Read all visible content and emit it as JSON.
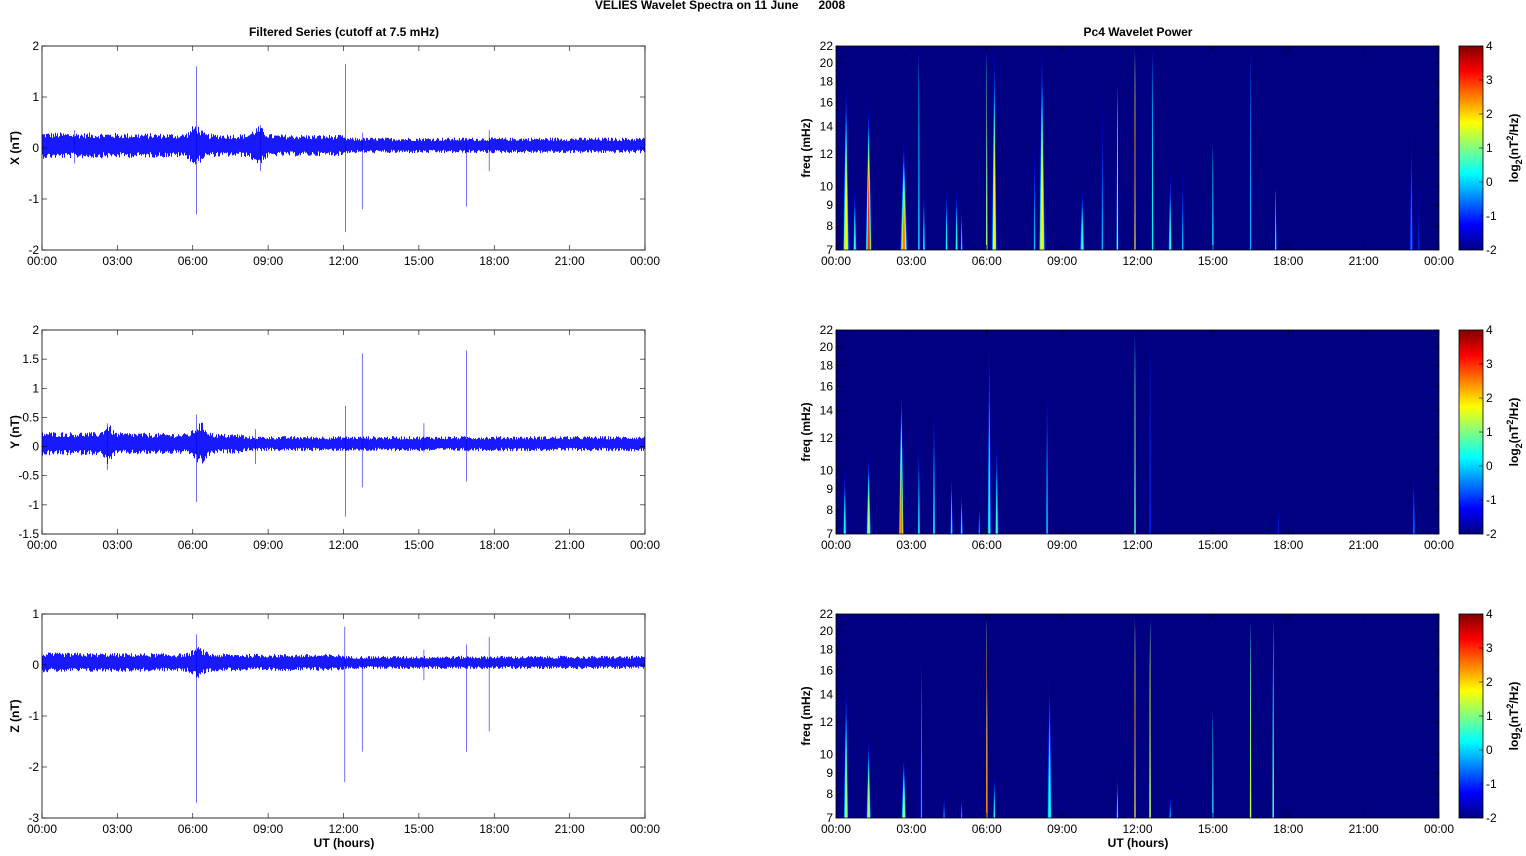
{
  "figure_title": "VELIES Wavelet Spectra on 11 June      2008",
  "left_column_title": "Filtered Series (cutoff at 7.5 mHz)",
  "right_column_title": "Pc4 Wavelet Power",
  "xlabel": "UT (hours)",
  "time_ticks": [
    "00:00",
    "03:00",
    "06:00",
    "09:00",
    "12:00",
    "15:00",
    "18:00",
    "21:00",
    "00:00"
  ],
  "colors": {
    "trace": "#0000ff",
    "axes": "#000000"
  },
  "chart_data": [
    {
      "type": "line",
      "name": "X",
      "ylabel": "X (nT)",
      "xlim": [
        0,
        24
      ],
      "ylim": [
        -2,
        2
      ],
      "yticks": [
        "2",
        "1",
        "0",
        "-1",
        "-2"
      ],
      "ytick_values": [
        2,
        1,
        0,
        -1,
        -2
      ],
      "baseline": 0.05,
      "noise_amplitude": 0.12,
      "active_intervals": [
        [
          0,
          12,
          0.08
        ],
        [
          6.1,
          0.25,
          0.15
        ],
        [
          8.6,
          0.3,
          0.12
        ]
      ],
      "spikes": [
        [
          6.15,
          1.6,
          -1.3
        ],
        [
          12.08,
          1.65,
          -1.65
        ],
        [
          12.75,
          0.3,
          -1.2
        ],
        [
          16.9,
          0.1,
          -1.15
        ],
        [
          17.8,
          0.35,
          -0.45
        ],
        [
          1.3,
          0.35,
          -0.3
        ],
        [
          8.7,
          0.45,
          -0.45
        ]
      ]
    },
    {
      "type": "heatmap",
      "name": "X-power",
      "ylabel": "freq (mHz)",
      "xlim": [
        0,
        24
      ],
      "ylim": [
        7,
        22
      ],
      "yscale": "log",
      "yticks": [
        "22",
        "20",
        "18",
        "16",
        "14",
        "12",
        "10",
        "9",
        "8",
        "7"
      ],
      "ytick_values": [
        22,
        20,
        18,
        16,
        14,
        12,
        10,
        9,
        8,
        7
      ],
      "colorbar": {
        "label": "log2(nT2/Hz)",
        "ticks": [
          "4",
          "3",
          "2",
          "1",
          "0",
          "-1",
          "-2"
        ],
        "range": [
          -2,
          4
        ]
      },
      "bursts": [
        [
          0.4,
          18,
          1.8,
          0.25
        ],
        [
          0.75,
          10,
          0.5,
          0.15
        ],
        [
          1.3,
          16,
          3,
          0.25
        ],
        [
          2.7,
          13,
          2.5,
          0.3
        ],
        [
          3.3,
          22,
          0.3,
          0.05
        ],
        [
          3.5,
          10,
          0.5,
          0.1
        ],
        [
          4.4,
          10,
          0.3,
          0.1
        ],
        [
          4.8,
          10,
          0.5,
          0.12
        ],
        [
          5.0,
          9,
          0.2,
          0.08
        ],
        [
          6.0,
          22,
          1.5,
          0.04
        ],
        [
          6.3,
          22,
          1.8,
          0.2
        ],
        [
          7.9,
          13,
          0,
          0.1
        ],
        [
          8.2,
          22,
          1.8,
          0.25
        ],
        [
          9.8,
          10,
          0.6,
          0.2
        ],
        [
          10.6,
          16,
          0,
          0.1
        ],
        [
          11.2,
          18,
          1,
          0.06
        ],
        [
          11.9,
          22,
          3,
          0.04
        ],
        [
          12.6,
          22,
          0.3,
          0.04
        ],
        [
          13.3,
          11,
          0.6,
          0.15
        ],
        [
          13.8,
          11,
          0,
          0.1
        ],
        [
          15.0,
          13,
          0.3,
          0.06
        ],
        [
          16.5,
          22,
          0,
          0.04
        ],
        [
          17.5,
          10,
          0.3,
          0.06
        ],
        [
          22.9,
          14,
          -0.5,
          0.12
        ],
        [
          23.2,
          10,
          -0.8,
          0.08
        ]
      ]
    },
    {
      "type": "line",
      "name": "Y",
      "ylabel": "Y (nT)",
      "xlim": [
        0,
        24
      ],
      "ylim": [
        -1.5,
        2
      ],
      "yticks": [
        "2",
        "1.5",
        "1",
        "0.5",
        "0",
        "-0.5",
        "-1",
        "-1.5"
      ],
      "ytick_values": [
        2,
        1.5,
        1,
        0.5,
        0,
        -0.5,
        -1,
        -1.5
      ],
      "baseline": 0.05,
      "noise_amplitude": 0.1,
      "active_intervals": [
        [
          0,
          8,
          0.06
        ],
        [
          6.3,
          0.3,
          0.15
        ],
        [
          2.6,
          0.2,
          0.12
        ]
      ],
      "spikes": [
        [
          6.15,
          0.55,
          -0.95
        ],
        [
          12.08,
          0.7,
          -1.2
        ],
        [
          12.75,
          1.6,
          -0.7
        ],
        [
          16.9,
          1.65,
          -0.6
        ],
        [
          2.6,
          0.4,
          -0.4
        ],
        [
          8.5,
          0.3,
          -0.3
        ],
        [
          15.2,
          0.4,
          -0.1
        ]
      ]
    },
    {
      "type": "heatmap",
      "name": "Y-power",
      "ylabel": "freq (mHz)",
      "xlim": [
        0,
        24
      ],
      "ylim": [
        7,
        22
      ],
      "yscale": "log",
      "yticks": [
        "22",
        "20",
        "18",
        "16",
        "14",
        "12",
        "10",
        "9",
        "8",
        "7"
      ],
      "ytick_values": [
        22,
        20,
        18,
        16,
        14,
        12,
        10,
        9,
        8,
        7
      ],
      "colorbar": {
        "label": "log2(nT2/Hz)",
        "ticks": [
          "4",
          "3",
          "2",
          "1",
          "0",
          "-1",
          "-2"
        ],
        "range": [
          -2,
          4
        ]
      },
      "bursts": [
        [
          0.35,
          10,
          0.3,
          0.15
        ],
        [
          1.3,
          11,
          1.2,
          0.2
        ],
        [
          2.6,
          16,
          2.6,
          0.2
        ],
        [
          3.3,
          12,
          0.5,
          0.1
        ],
        [
          3.9,
          15,
          0.6,
          0.1
        ],
        [
          4.6,
          10,
          0.3,
          0.1
        ],
        [
          5.0,
          9,
          0.2,
          0.1
        ],
        [
          5.7,
          8,
          0,
          0.06
        ],
        [
          6.1,
          22,
          0.5,
          0.15
        ],
        [
          6.4,
          12,
          0.6,
          0.15
        ],
        [
          8.4,
          17,
          0.3,
          0.08
        ],
        [
          11.9,
          22,
          1.2,
          0.04
        ],
        [
          12.5,
          22,
          -0.8,
          0.04
        ],
        [
          17.6,
          8,
          -1,
          0.06
        ],
        [
          23.0,
          10,
          -0.5,
          0.1
        ]
      ]
    },
    {
      "type": "line",
      "name": "Z",
      "ylabel": "Z (nT)",
      "xlim": [
        0,
        24
      ],
      "ylim": [
        -3,
        1
      ],
      "yticks": [
        "1",
        "0",
        "-1",
        "-2",
        "-3"
      ],
      "ytick_values": [
        1,
        0,
        -1,
        -2,
        -3
      ],
      "baseline": 0.05,
      "noise_amplitude": 0.1,
      "active_intervals": [
        [
          0,
          12,
          0.05
        ],
        [
          6.2,
          0.3,
          0.1
        ]
      ],
      "spikes": [
        [
          6.15,
          0.6,
          -2.7
        ],
        [
          12.05,
          0.75,
          -2.3
        ],
        [
          12.75,
          0.1,
          -1.7
        ],
        [
          16.9,
          0.4,
          -1.7
        ],
        [
          17.8,
          0.55,
          -1.3
        ],
        [
          15.2,
          0.3,
          -0.3
        ]
      ]
    },
    {
      "type": "heatmap",
      "name": "Z-power",
      "ylabel": "freq (mHz)",
      "xlim": [
        0,
        24
      ],
      "ylim": [
        7,
        22
      ],
      "yscale": "log",
      "yticks": [
        "22",
        "20",
        "18",
        "16",
        "14",
        "12",
        "10",
        "9",
        "8",
        "7"
      ],
      "ytick_values": [
        22,
        20,
        18,
        16,
        14,
        12,
        10,
        9,
        8,
        7
      ],
      "colorbar": {
        "label": "log2(nT2/Hz)",
        "ticks": [
          "4",
          "3",
          "2",
          "1",
          "0",
          "-1",
          "-2"
        ],
        "range": [
          -2,
          4
        ]
      },
      "bursts": [
        [
          0.4,
          15,
          1.2,
          0.2
        ],
        [
          1.3,
          11,
          1.2,
          0.2
        ],
        [
          2.7,
          10,
          1.2,
          0.2
        ],
        [
          3.4,
          17,
          0,
          0.06
        ],
        [
          4.3,
          8,
          0,
          0.08
        ],
        [
          5.0,
          8,
          0,
          0.08
        ],
        [
          6.0,
          22,
          2.8,
          0.05
        ],
        [
          6.3,
          9,
          0.5,
          0.1
        ],
        [
          8.5,
          16,
          0.5,
          0.2
        ],
        [
          11.2,
          9,
          0.6,
          0.08
        ],
        [
          11.9,
          22,
          2.8,
          0.05
        ],
        [
          12.5,
          22,
          1.8,
          0.05
        ],
        [
          13.3,
          8,
          0,
          0.1
        ],
        [
          15.0,
          13,
          0.6,
          0.06
        ],
        [
          16.5,
          22,
          1.6,
          0.05
        ],
        [
          17.4,
          22,
          1.2,
          0.05
        ]
      ]
    }
  ]
}
